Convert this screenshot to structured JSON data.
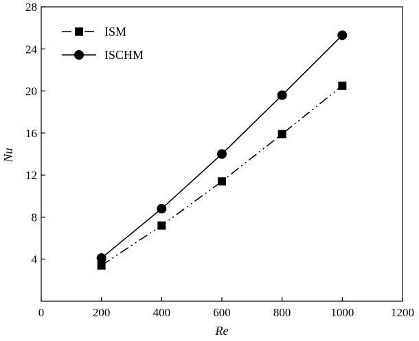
{
  "chart_data": {
    "type": "line",
    "xlabel": "Re",
    "ylabel": "Nu",
    "xlim": [
      0,
      1200
    ],
    "ylim": [
      0,
      28
    ],
    "xticks": [
      0,
      200,
      400,
      600,
      800,
      1000,
      1200
    ],
    "yticks": [
      4,
      8,
      12,
      16,
      20,
      24,
      28
    ],
    "grid": false,
    "legend_position": "top-left",
    "series": [
      {
        "name": "ISM",
        "marker": "square",
        "line_style": "dash-dot-dot",
        "x": [
          200,
          400,
          600,
          800,
          1000
        ],
        "y": [
          3.4,
          7.2,
          11.4,
          15.9,
          20.5
        ],
        "color": "#000000"
      },
      {
        "name": "ISCHM",
        "marker": "circle",
        "line_style": "solid",
        "x": [
          200,
          400,
          600,
          800,
          1000
        ],
        "y": [
          4.1,
          8.8,
          14.0,
          19.6,
          25.3
        ],
        "color": "#000000"
      }
    ]
  }
}
